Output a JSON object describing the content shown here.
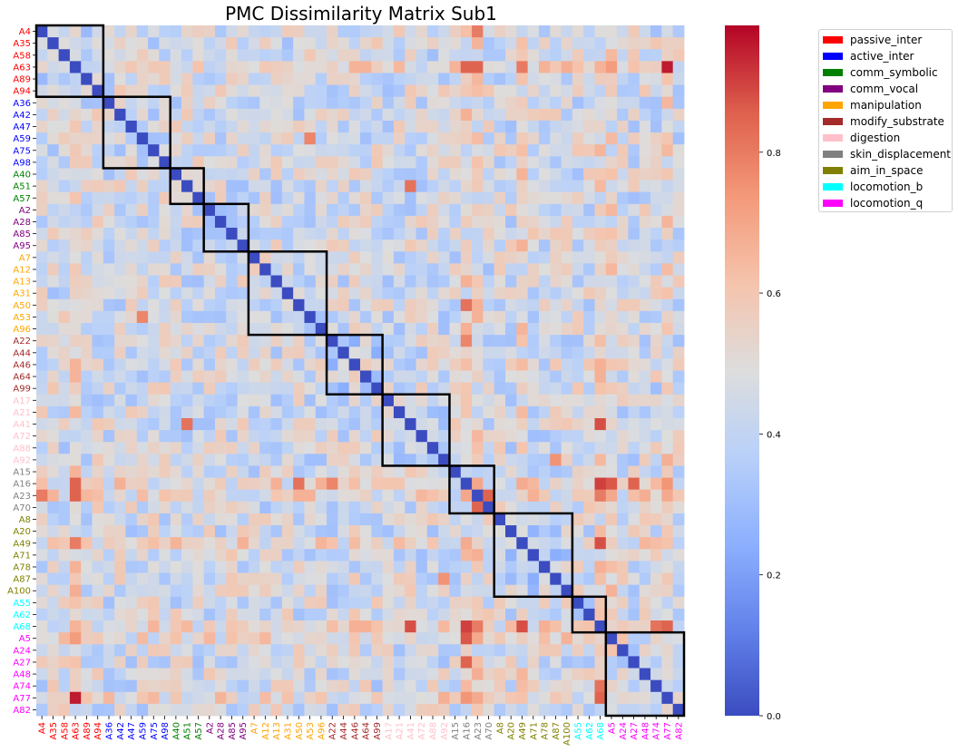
{
  "chart_data": {
    "type": "heatmap",
    "title": "PMC Dissimilarity Matrix Sub1",
    "labels": [
      "A4",
      "A35",
      "A58",
      "A63",
      "A89",
      "A94",
      "A36",
      "A42",
      "A47",
      "A59",
      "A75",
      "A98",
      "A40",
      "A51",
      "A57",
      "A2",
      "A28",
      "A85",
      "A95",
      "A7",
      "A12",
      "A13",
      "A31",
      "A50",
      "A53",
      "A96",
      "A22",
      "A44",
      "A46",
      "A64",
      "A99",
      "A17",
      "A21",
      "A41",
      "A72",
      "A88",
      "A92",
      "A15",
      "A16",
      "A23",
      "A70",
      "A8",
      "A20",
      "A49",
      "A71",
      "A78",
      "A87",
      "A100",
      "A55",
      "A62",
      "A68",
      "A5",
      "A24",
      "A27",
      "A48",
      "A74",
      "A77",
      "A82"
    ],
    "groups": [
      {
        "name": "passive_inter",
        "color": "#ff0000",
        "size": 6
      },
      {
        "name": "active_inter",
        "color": "#0000ff",
        "size": 6
      },
      {
        "name": "comm_symbolic",
        "color": "#008000",
        "size": 3
      },
      {
        "name": "comm_vocal",
        "color": "#800080",
        "size": 4
      },
      {
        "name": "manipulation",
        "color": "#ffa500",
        "size": 7
      },
      {
        "name": "modify_substrate",
        "color": "#a52a2a",
        "size": 5
      },
      {
        "name": "digestion",
        "color": "#ffc0cb",
        "size": 6
      },
      {
        "name": "skin_displacement",
        "color": "#808080",
        "size": 4
      },
      {
        "name": "aim_in_space",
        "color": "#808000",
        "size": 7
      },
      {
        "name": "locomotion_b",
        "color": "#00ffff",
        "size": 3
      },
      {
        "name": "locomotion_q",
        "color": "#ff00ff",
        "size": 7
      }
    ],
    "colorbar": {
      "min": 0.0,
      "max": 0.98,
      "ticks": [
        "0.0",
        "0.2",
        "0.4",
        "0.6",
        "0.8"
      ],
      "colormap": "coolwarm"
    },
    "diagonal_value": 0.0,
    "typical_value_range": [
      0.3,
      0.6
    ],
    "notable_cells": [
      {
        "row": "A63",
        "col": "A77",
        "value": 0.95
      },
      {
        "row": "A77",
        "col": "A63",
        "value": 0.95
      },
      {
        "row": "A16",
        "col": "A68",
        "value": 0.9
      },
      {
        "row": "A68",
        "col": "A16",
        "value": 0.9
      },
      {
        "row": "A63",
        "col": "A16",
        "value": 0.85
      },
      {
        "row": "A63",
        "col": "A23",
        "value": 0.85
      },
      {
        "row": "A16",
        "col": "A5",
        "value": 0.87
      },
      {
        "row": "A68",
        "col": "A41",
        "value": 0.88
      },
      {
        "row": "A49",
        "col": "A68",
        "value": 0.88
      },
      {
        "row": "A16",
        "col": "A27",
        "value": 0.85
      },
      {
        "row": "A68",
        "col": "A23",
        "value": 0.8
      },
      {
        "row": "A68",
        "col": "A77",
        "value": 0.85
      },
      {
        "row": "A68",
        "col": "A74",
        "value": 0.82
      },
      {
        "row": "A70",
        "col": "A23",
        "value": 0.85
      },
      {
        "row": "A23",
        "col": "A70",
        "value": 0.85
      },
      {
        "row": "A74",
        "col": "A68",
        "value": 0.82
      },
      {
        "row": "A5",
        "col": "A16",
        "value": 0.87
      },
      {
        "row": "A41",
        "col": "A68",
        "value": 0.88
      },
      {
        "row": "A27",
        "col": "A16",
        "value": 0.85
      },
      {
        "row": "A77",
        "col": "A68",
        "value": 0.85
      },
      {
        "row": "A51",
        "col": "A41",
        "value": 0.82
      },
      {
        "row": "A41",
        "col": "A51",
        "value": 0.82
      },
      {
        "row": "A53",
        "col": "A59",
        "value": 0.78
      },
      {
        "row": "A59",
        "col": "A53",
        "value": 0.78
      },
      {
        "row": "A50",
        "col": "A16",
        "value": 0.82
      },
      {
        "row": "A16",
        "col": "A50",
        "value": 0.82
      },
      {
        "row": "A87",
        "col": "A92",
        "value": 0.75
      },
      {
        "row": "A92",
        "col": "A87",
        "value": 0.75
      },
      {
        "row": "A49",
        "col": "A63",
        "value": 0.8
      },
      {
        "row": "A63",
        "col": "A49",
        "value": 0.8
      },
      {
        "row": "A4",
        "col": "A23",
        "value": 0.8
      },
      {
        "row": "A23",
        "col": "A4",
        "value": 0.8
      },
      {
        "row": "A22",
        "col": "A16",
        "value": 0.78
      },
      {
        "row": "A16",
        "col": "A22",
        "value": 0.78
      }
    ]
  }
}
